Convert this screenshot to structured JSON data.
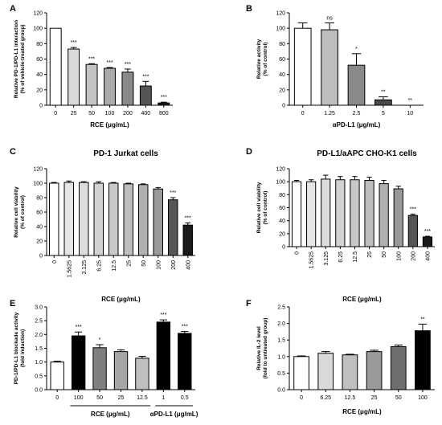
{
  "chart_data": [
    {
      "type": "bar",
      "panel": "A",
      "title": "",
      "xlabel": "RCE (μg/mL)",
      "ylabel": [
        "Relative PD-1/PD-L1 interaction",
        "(% of vehicle-treated group)"
      ],
      "ylim": [
        0,
        120
      ],
      "yticks": [
        0,
        20,
        40,
        60,
        80,
        100,
        120
      ],
      "categories": [
        "0",
        "25",
        "50",
        "100",
        "200",
        "400",
        "800"
      ],
      "values": [
        100,
        73,
        53,
        48,
        43,
        25,
        3
      ],
      "errors": [
        0,
        2,
        1,
        1,
        4,
        6,
        1
      ],
      "significance": [
        "",
        "***",
        "***",
        "***",
        "***",
        "***",
        "***"
      ],
      "colors": [
        "#ffffff",
        "#d9d9d9",
        "#c4c4c4",
        "#aaaaaa",
        "#8a8a8a",
        "#555555",
        "#1a1a1a"
      ]
    },
    {
      "type": "bar",
      "panel": "B",
      "title": "",
      "xlabel": "αPD-L1 (μg/mL)",
      "ylabel": [
        "Relative activity",
        "(% of control)"
      ],
      "ylim": [
        0,
        120
      ],
      "yticks": [
        0,
        20,
        40,
        60,
        80,
        100,
        120
      ],
      "categories": [
        "0",
        "1.25",
        "2.5",
        "5",
        "10"
      ],
      "values": [
        100,
        98,
        52,
        7,
        0
      ],
      "errors": [
        7,
        9,
        15,
        4,
        0
      ],
      "significance": [
        "",
        "ns",
        "*",
        "**",
        "**"
      ],
      "colors": [
        "#ffffff",
        "#bdbdbd",
        "#8a8a8a",
        "#4a4a4a",
        "#1a1a1a"
      ]
    },
    {
      "type": "bar",
      "panel": "C",
      "title": "PD-1 Jurkat cells",
      "xlabel": "RCE (μg/mL)",
      "ylabel": [
        "Relative cell viability",
        "(% of control)"
      ],
      "ylim": [
        0,
        120
      ],
      "yticks": [
        0,
        20,
        40,
        60,
        80,
        100,
        120
      ],
      "categories": [
        "0",
        "1.5625",
        "3.125",
        "6.25",
        "12.5",
        "25",
        "50",
        "100",
        "200",
        "400"
      ],
      "values": [
        100,
        101,
        101,
        100,
        100,
        99,
        98,
        92,
        77,
        42
      ],
      "errors": [
        1,
        2,
        1,
        2,
        1,
        1,
        1,
        2,
        3,
        3
      ],
      "significance": [
        "",
        "",
        "",
        "",
        "",
        "",
        "",
        "",
        "***",
        "***"
      ],
      "colors": [
        "#ffffff",
        "#e6e6e6",
        "#dcdcdc",
        "#d2d2d2",
        "#c8c8c8",
        "#bdbdbd",
        "#b0b0b0",
        "#999999",
        "#555555",
        "#1a1a1a"
      ]
    },
    {
      "type": "bar",
      "panel": "D",
      "title": "PD-L1/aAPC CHO-K1 cells",
      "xlabel": "RCE (μg/mL)",
      "ylabel": [
        "Relative cell viability",
        "(% of control)"
      ],
      "ylim": [
        0,
        120
      ],
      "yticks": [
        0,
        20,
        40,
        60,
        80,
        100,
        120
      ],
      "categories": [
        "0",
        "1.5625",
        "3.125",
        "6.25",
        "12.5",
        "25",
        "50",
        "100",
        "200",
        "400"
      ],
      "values": [
        100,
        100,
        104,
        103,
        103,
        102,
        97,
        89,
        48,
        15
      ],
      "errors": [
        2,
        3,
        6,
        5,
        5,
        5,
        5,
        4,
        2,
        1
      ],
      "significance": [
        "",
        "",
        "",
        "",
        "",
        "",
        "",
        "",
        "***",
        "***"
      ],
      "colors": [
        "#ffffff",
        "#e6e6e6",
        "#dcdcdc",
        "#d2d2d2",
        "#c8c8c8",
        "#bdbdbd",
        "#b0b0b0",
        "#999999",
        "#555555",
        "#1a1a1a"
      ]
    },
    {
      "type": "bar",
      "panel": "E",
      "title": "",
      "xlabel": "",
      "ylabel": [
        "PD-1/PD-L1 blockade activity",
        "(fold induction)"
      ],
      "ylim": [
        0,
        3.0
      ],
      "yticks": [
        0,
        0.5,
        1.0,
        1.5,
        2.0,
        2.5,
        3.0
      ],
      "yticklabels": [
        "0.0",
        "0.5",
        "1.0",
        "1.5",
        "2.0",
        "2.5",
        "3.0"
      ],
      "categories": [
        "0",
        "100",
        "50",
        "25",
        "12.5",
        "1",
        "0.5"
      ],
      "values": [
        1.0,
        1.95,
        1.52,
        1.38,
        1.14,
        2.45,
        2.04
      ],
      "errors": [
        0.03,
        0.14,
        0.11,
        0.06,
        0.07,
        0.08,
        0.07
      ],
      "significance": [
        "",
        "***",
        "*",
        "",
        "",
        "***",
        "***"
      ],
      "colors": [
        "#ffffff",
        "#000000",
        "#7f7f7f",
        "#a6a6a6",
        "#bfbfbf",
        "#000000",
        "#000000"
      ],
      "groups": [
        {
          "label": "RCE (μg/mL)",
          "from": 1,
          "to": 4
        },
        {
          "label": "αPD-L1 (μg/mL)",
          "from": 5,
          "to": 6
        }
      ]
    },
    {
      "type": "bar",
      "panel": "F",
      "title": "",
      "xlabel": "RCE (μg/mL)",
      "ylabel": [
        "Relative IL-2 level",
        "(fold to untreated group)"
      ],
      "ylim": [
        0,
        2.5
      ],
      "yticks": [
        0,
        0.5,
        1.0,
        1.5,
        2.0,
        2.5
      ],
      "yticklabels": [
        "0.0",
        "0.5",
        "1.0",
        "1.5",
        "2.0",
        "2.5"
      ],
      "categories": [
        "0",
        "6.25",
        "12.5",
        "25",
        "50",
        "100"
      ],
      "values": [
        1.0,
        1.1,
        1.05,
        1.15,
        1.3,
        1.78
      ],
      "errors": [
        0.02,
        0.05,
        0.02,
        0.04,
        0.05,
        0.2
      ],
      "significance": [
        "",
        "",
        "",
        "",
        "",
        "**"
      ],
      "colors": [
        "#ffffff",
        "#d9d9d9",
        "#bfbfbf",
        "#999999",
        "#6e6e6e",
        "#000000"
      ]
    }
  ]
}
